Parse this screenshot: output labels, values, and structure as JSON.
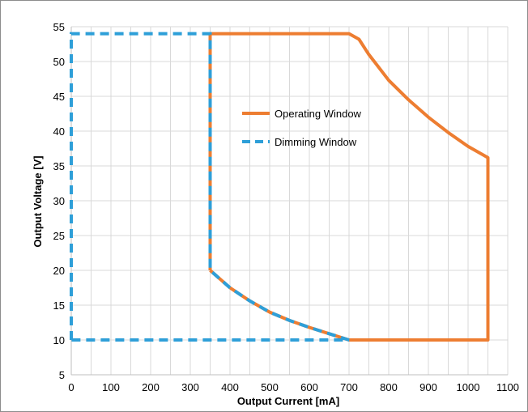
{
  "chart_data": {
    "type": "line",
    "title": "",
    "xlabel": "Output Current [mA]",
    "ylabel": "Output Voltage [V]",
    "xlim": [
      0,
      1100
    ],
    "ylim": [
      5,
      55
    ],
    "x_ticks": [
      "0",
      "100",
      "200",
      "300",
      "400",
      "500",
      "600",
      "700",
      "800",
      "900",
      "1000",
      "1100"
    ],
    "y_ticks": [
      "5",
      "10",
      "15",
      "20",
      "25",
      "30",
      "35",
      "40",
      "45",
      "50",
      "55"
    ],
    "grid": true,
    "legend_position": "center",
    "series": [
      {
        "name": "Operating Window",
        "color": "#ED7D31",
        "style": "solid",
        "points": [
          [
            350,
            20
          ],
          [
            350,
            54
          ],
          [
            700,
            54
          ],
          [
            725,
            53.2
          ],
          [
            750,
            51
          ],
          [
            800,
            47.3
          ],
          [
            850,
            44.5
          ],
          [
            900,
            42
          ],
          [
            950,
            39.8
          ],
          [
            1000,
            37.8
          ],
          [
            1050,
            36.2
          ],
          [
            1050,
            10
          ],
          [
            700,
            10
          ],
          [
            650,
            10.9
          ],
          [
            600,
            11.8
          ],
          [
            550,
            12.8
          ],
          [
            500,
            14
          ],
          [
            450,
            15.6
          ],
          [
            400,
            17.5
          ],
          [
            350,
            20
          ]
        ]
      },
      {
        "name": "Dimming Window",
        "color": "#2E9FD8",
        "style": "dashed",
        "points": [
          [
            0,
            10
          ],
          [
            0,
            54
          ],
          [
            350,
            54
          ],
          [
            350,
            20
          ],
          [
            400,
            17.5
          ],
          [
            450,
            15.6
          ],
          [
            500,
            14
          ],
          [
            550,
            12.8
          ],
          [
            600,
            11.8
          ],
          [
            650,
            10.9
          ],
          [
            700,
            10
          ],
          [
            0,
            10
          ]
        ]
      }
    ]
  }
}
